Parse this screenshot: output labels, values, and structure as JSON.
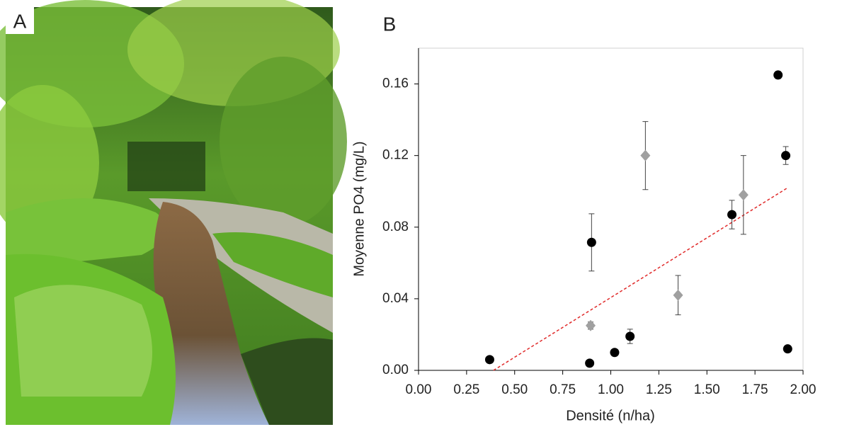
{
  "panel_labels": [
    "A",
    "B"
  ],
  "chart_data": {
    "type": "scatter",
    "xlabel": "Densité (n/ha)",
    "ylabel": "Moyenne PO4 (mg/L)",
    "xlim": [
      0,
      2
    ],
    "ylim": [
      0,
      0.18
    ],
    "xticks": [
      {
        "value": 0,
        "label": "0.00"
      },
      {
        "value": 0.25,
        "label": "0.25"
      },
      {
        "value": 0.5,
        "label": "0.50"
      },
      {
        "value": 0.75,
        "label": "0.75"
      },
      {
        "value": 1,
        "label": "1.00"
      },
      {
        "value": 1.25,
        "label": "1.25"
      },
      {
        "value": 1.5,
        "label": "1.50"
      },
      {
        "value": 1.75,
        "label": "1.75"
      },
      {
        "value": 2,
        "label": "2.00"
      }
    ],
    "yticks": [
      {
        "value": 0,
        "label": "0.00"
      },
      {
        "value": 0.04,
        "label": "0.04"
      },
      {
        "value": 0.08,
        "label": "0.08"
      },
      {
        "value": 0.12,
        "label": "0.12"
      },
      {
        "value": 0.16,
        "label": "0.16"
      }
    ],
    "series": [
      {
        "color": "#000000",
        "marker": "circle",
        "x": [
          0.37,
          0.89,
          0.9,
          1.02,
          1.1,
          1.63,
          1.87,
          1.91,
          1.92
        ],
        "values": [
          0.006,
          0.004,
          0.0715,
          0.01,
          0.019,
          0.087,
          0.165,
          0.12,
          0.012
        ],
        "errors": [
          null,
          null,
          0.016,
          null,
          0.004,
          0.008,
          0.002,
          0.005,
          null
        ]
      },
      {
        "color": "#a0a0a0",
        "marker": "diamond",
        "x": [
          0.895,
          1.18,
          1.35,
          1.69
        ],
        "values": [
          0.025,
          0.12,
          0.042,
          0.098
        ],
        "errors": [
          0.002,
          0.019,
          0.011,
          0.022
        ]
      }
    ],
    "trendline": {
      "color": "#e02a2a",
      "x": [
        0.39,
        1.92
      ],
      "values": [
        0,
        0.102
      ]
    }
  }
}
